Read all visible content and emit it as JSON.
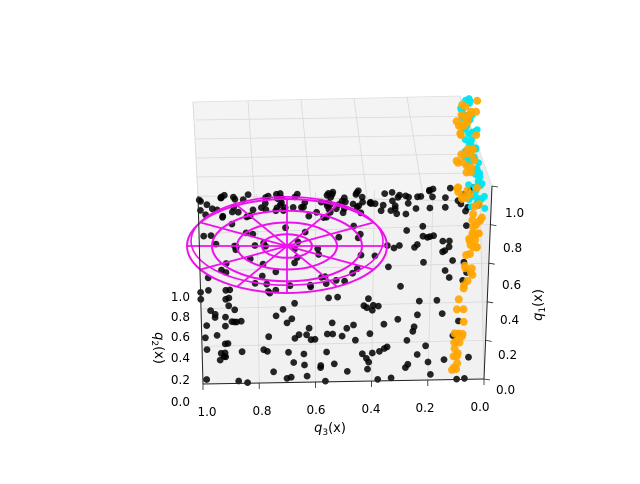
{
  "chart_data": {
    "type": "scatter",
    "projection": "3d",
    "title": "",
    "axes": {
      "x": {
        "label": "q_3(x)",
        "label_main": "q",
        "label_sub": "3",
        "label_tail": "(x)",
        "ticks": [
          "1.0",
          "0.8",
          "0.6",
          "0.4",
          "0.2",
          "0.0"
        ],
        "range": [
          0,
          1
        ]
      },
      "y": {
        "label": "q_1(x)",
        "label_main": "q",
        "label_sub": "1",
        "label_tail": "(x)",
        "ticks": [
          "0.0",
          "0.2",
          "0.4",
          "0.6",
          "0.8",
          "1.0"
        ],
        "range": [
          0,
          1
        ]
      },
      "z": {
        "label": "q_2(x)",
        "label_main": "q",
        "label_sub": "2",
        "label_tail": "(x)",
        "ticks": [
          "0.0",
          "0.2",
          "0.4",
          "0.6",
          "0.8",
          "1.0"
        ],
        "range": [
          0,
          1
        ]
      }
    },
    "grid": true,
    "series": [
      {
        "name": "black points",
        "color": "#000000",
        "kind": "scatter",
        "count": 300,
        "distribution": "spread over the q_2 ≈ 0 floor and the far back edge"
      },
      {
        "name": "orange points",
        "color": "#ffa500",
        "kind": "scatter",
        "count": 90,
        "distribution": "along the q_3 ≈ 0, q_2 ≈ 0 edge, q_1 from 0 to 1"
      },
      {
        "name": "cyan band",
        "color": "#00e5ee",
        "kind": "scatter",
        "count": 60,
        "distribution": "thin band near q_3 = 0, high q_1"
      },
      {
        "name": "magenta target",
        "color": "#ee11ee",
        "kind": "polar-wireframe",
        "rings": 4,
        "spokes": 12
      }
    ]
  }
}
